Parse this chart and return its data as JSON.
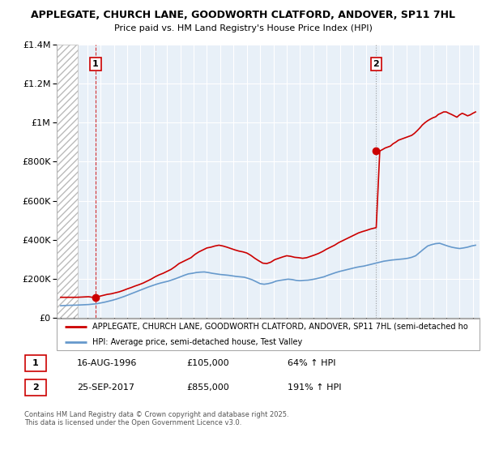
{
  "title1": "APPLEGATE, CHURCH LANE, GOODWORTH CLATFORD, ANDOVER, SP11 7HL",
  "title2": "Price paid vs. HM Land Registry's House Price Index (HPI)",
  "legend_line1": "APPLEGATE, CHURCH LANE, GOODWORTH CLATFORD, ANDOVER, SP11 7HL (semi-detached ho",
  "legend_line2": "HPI: Average price, semi-detached house, Test Valley",
  "annotation1_label": "1",
  "annotation1_date": "16-AUG-1996",
  "annotation1_price": "£105,000",
  "annotation1_hpi": "64% ↑ HPI",
  "annotation2_label": "2",
  "annotation2_date": "25-SEP-2017",
  "annotation2_price": "£855,000",
  "annotation2_hpi": "191% ↑ HPI",
  "footer": "Contains HM Land Registry data © Crown copyright and database right 2025.\nThis data is licensed under the Open Government Licence v3.0.",
  "property_color": "#cc0000",
  "hpi_color": "#6699cc",
  "ylim": [
    0,
    1400000
  ],
  "yticks": [
    0,
    200000,
    400000,
    600000,
    800000,
    1000000,
    1200000,
    1400000
  ],
  "ytick_labels": [
    "£0",
    "£200K",
    "£400K",
    "£600K",
    "£800K",
    "£1M",
    "£1.2M",
    "£1.4M"
  ],
  "xlim_start": 1993.7,
  "xlim_end": 2025.5,
  "point1_x": 1996.62,
  "point1_y": 105000,
  "point2_x": 2017.73,
  "point2_y": 855000,
  "hatch_end": 1995.3,
  "property_dates": [
    1994.0,
    1994.3,
    1994.6,
    1994.9,
    1995.2,
    1995.5,
    1995.8,
    1996.1,
    1996.4,
    1996.62,
    1996.9,
    1997.2,
    1997.5,
    1997.8,
    1998.1,
    1998.4,
    1998.7,
    1999.0,
    1999.3,
    1999.6,
    1999.9,
    2000.2,
    2000.5,
    2000.8,
    2001.1,
    2001.4,
    2001.7,
    2002.0,
    2002.3,
    2002.6,
    2002.9,
    2003.2,
    2003.5,
    2003.8,
    2004.1,
    2004.4,
    2004.7,
    2005.0,
    2005.3,
    2005.6,
    2005.9,
    2006.2,
    2006.5,
    2006.8,
    2007.1,
    2007.4,
    2007.7,
    2008.0,
    2008.3,
    2008.6,
    2008.9,
    2009.2,
    2009.5,
    2009.8,
    2010.1,
    2010.4,
    2010.7,
    2011.0,
    2011.3,
    2011.6,
    2011.9,
    2012.2,
    2012.5,
    2012.8,
    2013.1,
    2013.4,
    2013.7,
    2014.0,
    2014.3,
    2014.6,
    2014.9,
    2015.2,
    2015.5,
    2015.8,
    2016.1,
    2016.4,
    2016.7,
    2017.0,
    2017.3,
    2017.73,
    2018.0,
    2018.2,
    2018.4,
    2018.6,
    2018.8,
    2019.0,
    2019.2,
    2019.4,
    2019.6,
    2019.8,
    2020.0,
    2020.2,
    2020.4,
    2020.6,
    2020.8,
    2021.0,
    2021.2,
    2021.4,
    2021.6,
    2021.8,
    2022.0,
    2022.2,
    2022.4,
    2022.6,
    2022.8,
    2023.0,
    2023.2,
    2023.4,
    2023.6,
    2023.8,
    2024.0,
    2024.2,
    2024.4,
    2024.6,
    2024.8,
    2025.0,
    2025.2
  ],
  "property_values": [
    105000,
    105000,
    105000,
    105000,
    105000,
    106000,
    107000,
    108000,
    105000,
    105000,
    110000,
    115000,
    120000,
    123000,
    128000,
    133000,
    140000,
    148000,
    155000,
    163000,
    170000,
    178000,
    188000,
    198000,
    210000,
    220000,
    228000,
    238000,
    248000,
    262000,
    278000,
    288000,
    298000,
    308000,
    325000,
    338000,
    348000,
    358000,
    362000,
    368000,
    372000,
    368000,
    362000,
    355000,
    348000,
    342000,
    338000,
    332000,
    320000,
    305000,
    292000,
    280000,
    278000,
    285000,
    298000,
    305000,
    312000,
    318000,
    315000,
    310000,
    308000,
    305000,
    308000,
    315000,
    322000,
    330000,
    340000,
    352000,
    362000,
    372000,
    385000,
    395000,
    405000,
    415000,
    425000,
    435000,
    442000,
    448000,
    455000,
    462000,
    855000,
    862000,
    870000,
    875000,
    880000,
    892000,
    900000,
    910000,
    915000,
    920000,
    925000,
    930000,
    935000,
    945000,
    958000,
    972000,
    988000,
    1000000,
    1010000,
    1018000,
    1025000,
    1030000,
    1042000,
    1048000,
    1055000,
    1055000,
    1048000,
    1042000,
    1035000,
    1028000,
    1040000,
    1048000,
    1042000,
    1035000,
    1040000,
    1048000,
    1055000
  ],
  "hpi_dates": [
    1994.0,
    1994.3,
    1994.6,
    1994.9,
    1995.2,
    1995.5,
    1995.8,
    1996.1,
    1996.4,
    1996.7,
    1997.0,
    1997.3,
    1997.6,
    1997.9,
    1998.2,
    1998.5,
    1998.8,
    1999.1,
    1999.4,
    1999.7,
    2000.0,
    2000.3,
    2000.6,
    2000.9,
    2001.2,
    2001.5,
    2001.8,
    2002.1,
    2002.4,
    2002.7,
    2003.0,
    2003.3,
    2003.6,
    2003.9,
    2004.2,
    2004.5,
    2004.8,
    2005.1,
    2005.4,
    2005.7,
    2006.0,
    2006.3,
    2006.6,
    2006.9,
    2007.2,
    2007.5,
    2007.8,
    2008.1,
    2008.4,
    2008.7,
    2009.0,
    2009.3,
    2009.6,
    2009.9,
    2010.2,
    2010.5,
    2010.8,
    2011.1,
    2011.4,
    2011.7,
    2012.0,
    2012.3,
    2012.6,
    2012.9,
    2013.2,
    2013.5,
    2013.8,
    2014.1,
    2014.4,
    2014.7,
    2015.0,
    2015.3,
    2015.6,
    2015.9,
    2016.2,
    2016.5,
    2016.8,
    2017.1,
    2017.4,
    2017.7,
    2018.0,
    2018.3,
    2018.6,
    2018.9,
    2019.2,
    2019.5,
    2019.8,
    2020.1,
    2020.4,
    2020.7,
    2021.0,
    2021.3,
    2021.6,
    2021.9,
    2022.2,
    2022.5,
    2022.8,
    2023.1,
    2023.4,
    2023.7,
    2024.0,
    2024.3,
    2024.6,
    2024.9,
    2025.2
  ],
  "hpi_values": [
    62000,
    63000,
    64000,
    64500,
    65000,
    66000,
    67000,
    68000,
    70000,
    72000,
    76000,
    80000,
    85000,
    90000,
    96000,
    103000,
    110000,
    118000,
    126000,
    134000,
    142000,
    150000,
    158000,
    165000,
    172000,
    178000,
    183000,
    188000,
    195000,
    202000,
    210000,
    218000,
    225000,
    228000,
    232000,
    234000,
    235000,
    232000,
    228000,
    225000,
    222000,
    220000,
    218000,
    215000,
    212000,
    210000,
    208000,
    202000,
    195000,
    185000,
    175000,
    172000,
    175000,
    180000,
    188000,
    192000,
    195000,
    198000,
    196000,
    192000,
    190000,
    192000,
    193000,
    196000,
    200000,
    205000,
    210000,
    218000,
    225000,
    232000,
    238000,
    243000,
    248000,
    253000,
    258000,
    262000,
    265000,
    270000,
    275000,
    280000,
    285000,
    290000,
    293000,
    296000,
    298000,
    300000,
    302000,
    305000,
    310000,
    318000,
    335000,
    352000,
    368000,
    375000,
    380000,
    382000,
    375000,
    368000,
    362000,
    358000,
    355000,
    358000,
    362000,
    368000,
    372000
  ]
}
